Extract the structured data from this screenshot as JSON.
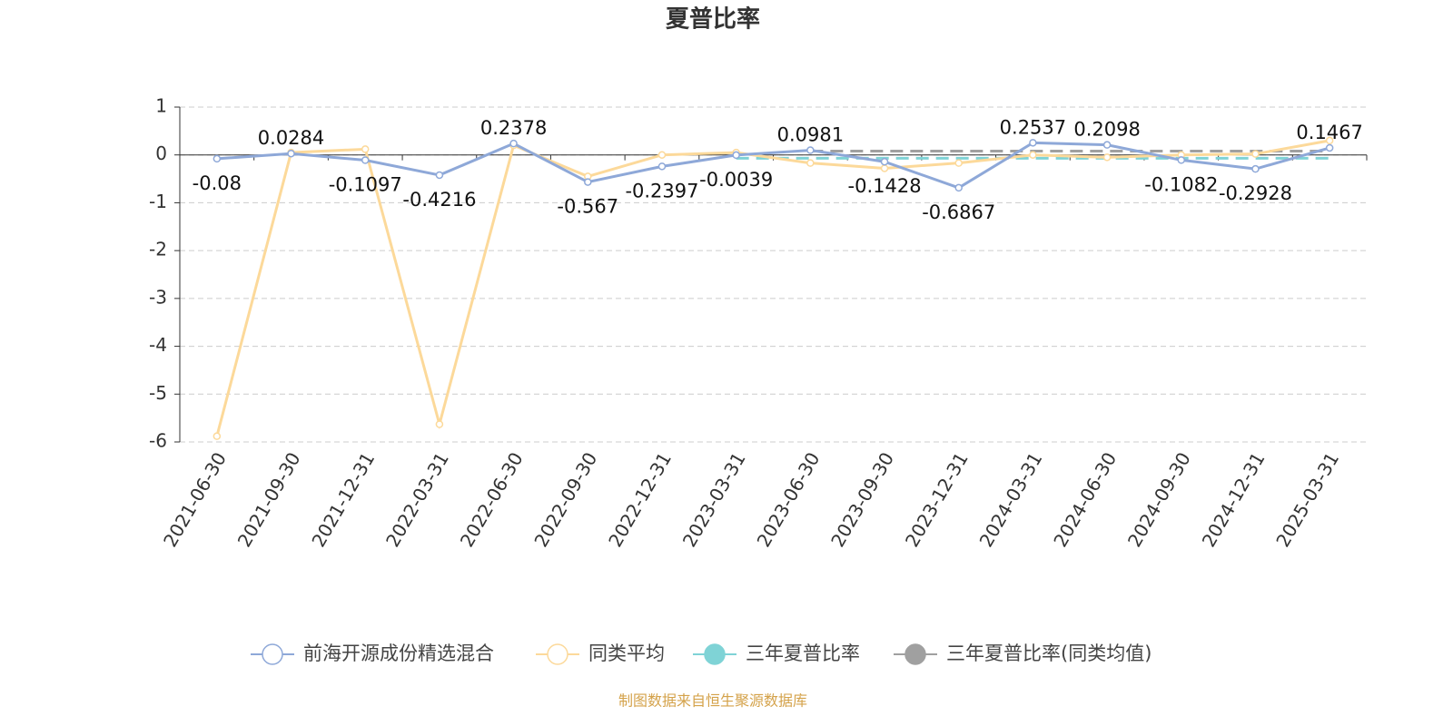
{
  "chart_data": {
    "type": "line",
    "title": "夏普比率",
    "categories": [
      "2021-06-30",
      "2021-09-30",
      "2021-12-31",
      "2022-03-31",
      "2022-06-30",
      "2022-09-30",
      "2022-12-31",
      "2023-03-31",
      "2023-06-30",
      "2023-09-30",
      "2023-12-31",
      "2024-03-31",
      "2024-06-30",
      "2024-09-30",
      "2024-12-31",
      "2025-03-31"
    ],
    "series": [
      {
        "name": "前海开源成份精选混合",
        "color": "#8ea8d8",
        "labels": true,
        "values": [
          -0.08,
          0.0284,
          -0.1097,
          -0.4216,
          0.2378,
          -0.567,
          -0.2397,
          -0.0039,
          0.0981,
          -0.1428,
          -0.6867,
          0.2537,
          0.2098,
          -0.1082,
          -0.2928,
          0.1467
        ]
      },
      {
        "name": "同类平均",
        "color": "#fcd99a",
        "values": [
          -5.88,
          0.05,
          0.12,
          -5.63,
          0.2,
          -0.45,
          0.0,
          0.05,
          -0.17,
          -0.28,
          -0.17,
          0.0,
          -0.05,
          0.0,
          0.02,
          0.3
        ]
      },
      {
        "name": "三年夏普比率",
        "color": "#7fd3d6",
        "dashed": true,
        "values": [
          null,
          null,
          null,
          null,
          null,
          null,
          null,
          -0.07,
          -0.07,
          -0.07,
          -0.07,
          -0.07,
          -0.07,
          -0.07,
          -0.07,
          -0.07
        ]
      },
      {
        "name": "三年夏普比率(同类均值)",
        "color": "#a0a0a0",
        "dashed": true,
        "values": [
          null,
          null,
          null,
          null,
          null,
          null,
          null,
          null,
          0.08,
          0.08,
          0.08,
          0.08,
          0.08,
          0.08,
          0.08,
          0.08
        ]
      }
    ],
    "ylim": [
      -6,
      1
    ],
    "yticks": [
      -6,
      -5,
      -4,
      -3,
      -2,
      -1,
      0,
      1
    ],
    "grid": true,
    "source": "制图数据来自恒生聚源数据库"
  }
}
